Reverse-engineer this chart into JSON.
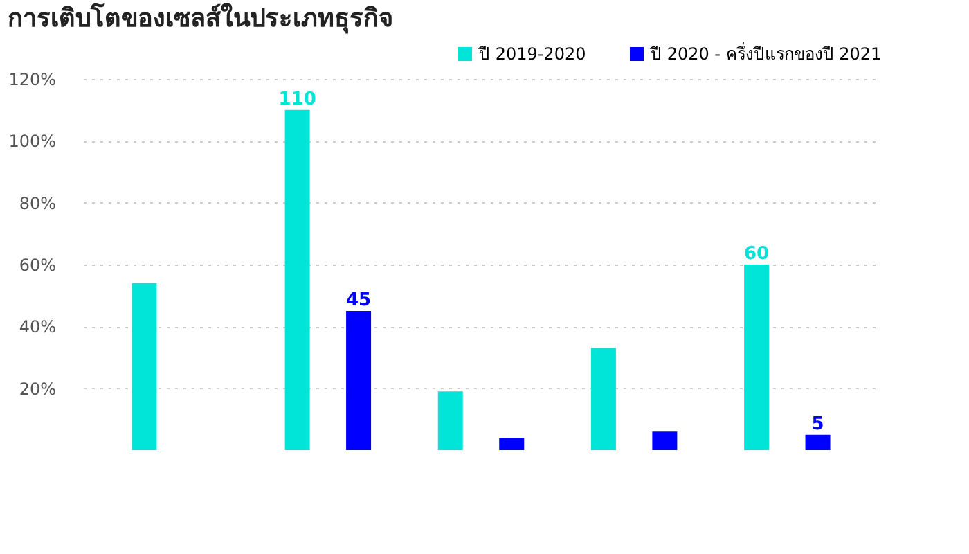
{
  "chart_data": {
    "type": "bar",
    "title": "การเติบโตของเซลส์ในประเภทธุรกิจ",
    "categories": [
      null,
      null,
      null,
      null,
      null
    ],
    "series": [
      {
        "name": "ปี 2019-2020",
        "color": "#00e5d8",
        "values": [
          54,
          110,
          19,
          33,
          60
        ],
        "value_labels": [
          null,
          "110",
          null,
          null,
          "60"
        ]
      },
      {
        "name": "ปี 2020 - ครึ่งปีแรกของปี 2021",
        "color": "#0000ff",
        "values": [
          null,
          45,
          4,
          6,
          5
        ],
        "value_labels": [
          null,
          "45",
          null,
          null,
          "5"
        ]
      }
    ],
    "ylim": [
      0,
      120
    ],
    "yticks": [
      {
        "value": 20,
        "label": "20%"
      },
      {
        "value": 40,
        "label": "40%"
      },
      {
        "value": 60,
        "label": "60%"
      },
      {
        "value": 80,
        "label": "80%"
      },
      {
        "value": 100,
        "label": "100%"
      },
      {
        "value": 120,
        "label": "120%"
      }
    ],
    "grid": "y",
    "legend": "top right",
    "tick_labels": "y"
  }
}
